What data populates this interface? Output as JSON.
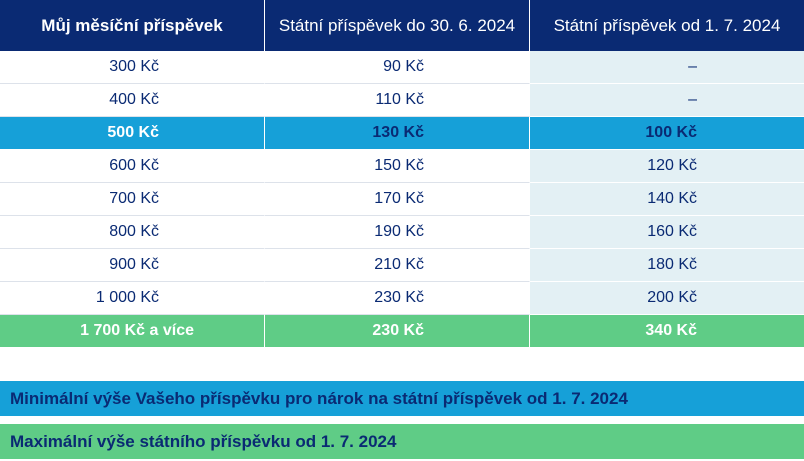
{
  "colors": {
    "header_bg": "#0a2a73",
    "highlight_blue": "#16a0d8",
    "highlight_green": "#5fcc86",
    "new_column_bg": "#e3f0f4",
    "text_dark": "#0a2a73"
  },
  "table": {
    "headers": [
      "Můj měsíční příspěvek",
      "Státní příspěvek do 30. 6. 2024",
      "Státní příspěvek od 1. 7. 2024"
    ],
    "rows": [
      {
        "my": "300 Kč",
        "old": "90 Kč",
        "new": "–"
      },
      {
        "my": "400 Kč",
        "old": "110 Kč",
        "new": "–"
      },
      {
        "my": "500 Kč",
        "old": "130 Kč",
        "new": "100 Kč",
        "highlight": "blue"
      },
      {
        "my": "600 Kč",
        "old": "150 Kč",
        "new": "120 Kč"
      },
      {
        "my": "700 Kč",
        "old": "170 Kč",
        "new": "140 Kč"
      },
      {
        "my": "800 Kč",
        "old": "190 Kč",
        "new": "160 Kč"
      },
      {
        "my": "900 Kč",
        "old": "210 Kč",
        "new": "180 Kč"
      },
      {
        "my": "1 000 Kč",
        "old": "230 Kč",
        "new": "200 Kč"
      },
      {
        "my": "1 700 Kč a více",
        "old": "230 Kč",
        "new": "340 Kč",
        "highlight": "green"
      }
    ]
  },
  "legend": {
    "blue": "Minimální výše Vašeho příspěvku pro nárok na státní příspěvek od 1. 7. 2024",
    "green": "Maximální výše státního příspěvku od 1. 7. 2024"
  }
}
